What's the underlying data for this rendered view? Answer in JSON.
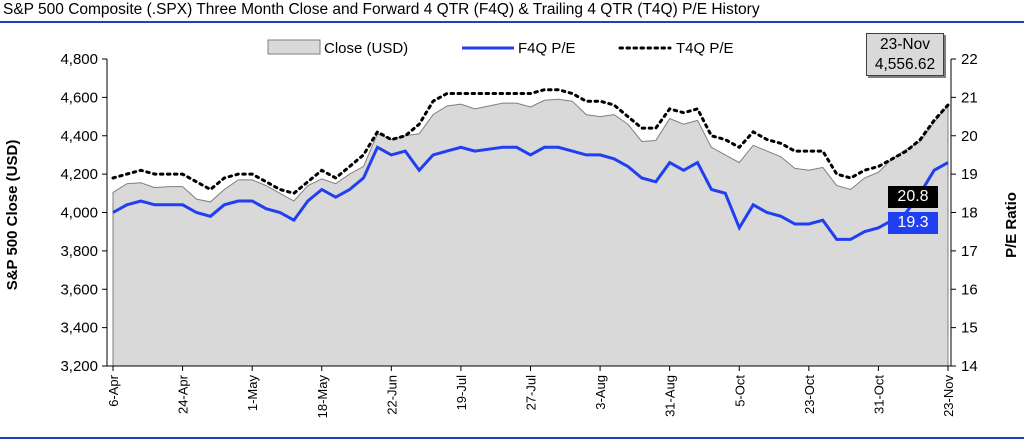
{
  "chart_data": {
    "type": "area",
    "title": "S&P 500 Composite (.SPX) Three Month Close and Forward 4 QTR (F4Q) & Trailing 4 QTR (T4Q) P/E History",
    "ylabel": "S&P 500 Close (USD)",
    "y2label": "P/E Ratio",
    "ylim": [
      3200,
      4800
    ],
    "y2lim": [
      14,
      22
    ],
    "yticks": [
      "3,200",
      "3,400",
      "3,600",
      "3,800",
      "4,000",
      "4,200",
      "4,400",
      "4,600",
      "4,800"
    ],
    "y2ticks": [
      "14",
      "15",
      "16",
      "17",
      "18",
      "19",
      "20",
      "21",
      "22"
    ],
    "xticks": [
      "6-Apr",
      "24-Apr",
      "1-May",
      "18-May",
      "22-Jun",
      "19-Jul",
      "27-Jul",
      "3-Aug",
      "31-Aug",
      "5-Oct",
      "23-Oct",
      "31-Oct",
      "23-Nov"
    ],
    "legend_position": "top",
    "series": [
      {
        "name": "Close (USD)",
        "axis": "left",
        "color": "#d9d9d9",
        "values": [
          4105,
          4150,
          4155,
          4130,
          4135,
          4135,
          4070,
          4055,
          4120,
          4170,
          4170,
          4140,
          4100,
          4060,
          4140,
          4175,
          4150,
          4200,
          4240,
          4410,
          4380,
          4400,
          4410,
          4510,
          4555,
          4565,
          4540,
          4555,
          4570,
          4570,
          4550,
          4585,
          4590,
          4580,
          4510,
          4500,
          4510,
          4460,
          4370,
          4375,
          4490,
          4460,
          4480,
          4340,
          4300,
          4260,
          4350,
          4320,
          4290,
          4230,
          4220,
          4235,
          4140,
          4120,
          4180,
          4210,
          4280,
          4330,
          4370,
          4470,
          4556.62
        ]
      },
      {
        "name": "F4Q P/E",
        "axis": "right",
        "color": "#1f3ff0",
        "values": [
          18.0,
          18.2,
          18.3,
          18.2,
          18.2,
          18.2,
          18.0,
          17.9,
          18.2,
          18.3,
          18.3,
          18.1,
          18.0,
          17.8,
          18.3,
          18.6,
          18.4,
          18.6,
          18.9,
          19.7,
          19.5,
          19.6,
          19.1,
          19.5,
          19.6,
          19.7,
          19.6,
          19.65,
          19.7,
          19.7,
          19.5,
          19.7,
          19.7,
          19.6,
          19.5,
          19.5,
          19.4,
          19.2,
          18.9,
          18.8,
          19.3,
          19.1,
          19.3,
          18.6,
          18.5,
          17.6,
          18.2,
          18.0,
          17.9,
          17.7,
          17.7,
          17.8,
          17.3,
          17.3,
          17.5,
          17.6,
          17.8,
          18.0,
          18.5,
          19.1,
          19.3
        ]
      },
      {
        "name": "T4Q P/E",
        "axis": "right",
        "color": "#000000",
        "values": [
          18.9,
          19.0,
          19.1,
          19.0,
          19.0,
          19.0,
          18.8,
          18.6,
          18.9,
          19.0,
          19.0,
          18.8,
          18.6,
          18.5,
          18.8,
          19.1,
          18.9,
          19.2,
          19.5,
          20.1,
          19.9,
          20.0,
          20.3,
          20.9,
          21.1,
          21.1,
          21.1,
          21.1,
          21.1,
          21.1,
          21.1,
          21.2,
          21.2,
          21.1,
          20.9,
          20.9,
          20.8,
          20.5,
          20.2,
          20.2,
          20.7,
          20.6,
          20.7,
          20.0,
          19.9,
          19.7,
          20.1,
          19.9,
          19.8,
          19.6,
          19.6,
          19.6,
          19.0,
          18.9,
          19.1,
          19.2,
          19.4,
          19.6,
          19.9,
          20.4,
          20.8
        ]
      }
    ],
    "callout": {
      "date": "23-Nov",
      "value": "4,556.62"
    },
    "end_labels": {
      "t4q": "20.8",
      "f4q": "19.3"
    }
  }
}
